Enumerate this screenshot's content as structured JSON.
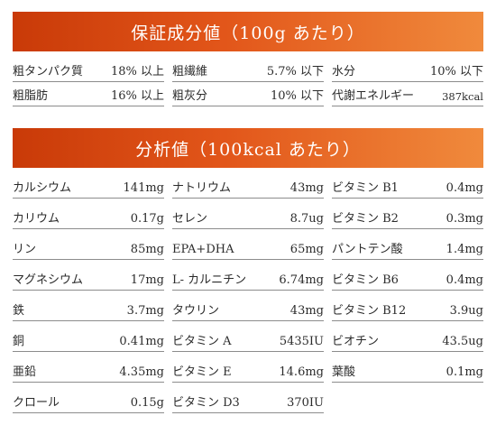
{
  "section1": {
    "title": "保証成分値（100g あたり）",
    "rows": [
      [
        {
          "label": "粗タンパク質",
          "value": "18% 以上"
        },
        {
          "label": "粗繊維",
          "value": "5.7% 以下"
        },
        {
          "label": "水分",
          "value": "10% 以下"
        }
      ],
      [
        {
          "label": "粗脂肪",
          "value": "16% 以上"
        },
        {
          "label": "粗灰分",
          "value": "10% 以下"
        },
        {
          "label": "代謝エネルギー",
          "value": "387kcal"
        }
      ]
    ]
  },
  "section2": {
    "title": "分析値（100kcal あたり）",
    "rows": [
      [
        {
          "label": "カルシウム",
          "value": "141mg"
        },
        {
          "label": "ナトリウム",
          "value": "43mg"
        },
        {
          "label": "ビタミン B1",
          "value": "0.4mg"
        }
      ],
      [
        {
          "label": "カリウム",
          "value": "0.17g"
        },
        {
          "label": "セレン",
          "value": "8.7ug"
        },
        {
          "label": "ビタミン B2",
          "value": "0.3mg"
        }
      ],
      [
        {
          "label": "リン",
          "value": "85mg"
        },
        {
          "label": "EPA+DHA",
          "value": "65mg"
        },
        {
          "label": "パントテン酸",
          "value": "1.4mg"
        }
      ],
      [
        {
          "label": "マグネシウム",
          "value": "17mg"
        },
        {
          "label": "L- カルニチン",
          "value": "6.74mg"
        },
        {
          "label": "ビタミン B6",
          "value": "0.4mg"
        }
      ],
      [
        {
          "label": "鉄",
          "value": "3.7mg"
        },
        {
          "label": "タウリン",
          "value": "43mg"
        },
        {
          "label": "ビタミン B12",
          "value": "3.9ug"
        }
      ],
      [
        {
          "label": "銅",
          "value": "0.41mg"
        },
        {
          "label": "ビタミン A",
          "value": "5435IU"
        },
        {
          "label": "ビオチン",
          "value": "43.5ug"
        }
      ],
      [
        {
          "label": "亜鉛",
          "value": "4.35mg"
        },
        {
          "label": "ビタミン E",
          "value": "14.6mg"
        },
        {
          "label": "葉酸",
          "value": "0.1mg"
        }
      ],
      [
        {
          "label": "クロール",
          "value": "0.15g"
        },
        {
          "label": "ビタミン D3",
          "value": "370IU"
        },
        null
      ]
    ]
  }
}
